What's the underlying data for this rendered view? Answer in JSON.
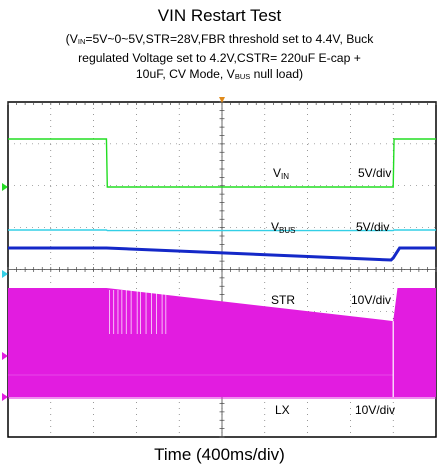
{
  "title": "VIN Restart Test",
  "caption": {
    "line1_pre": "(V",
    "line1_sub1": "IN",
    "line1_post": "=5V~0~5V,STR=28V,FBR threshold set to 4.4V, Buck",
    "line2": "regulated Voltage set to 4.2V,CSTR= 220uF E-cap +",
    "line3_pre": "10uF, CV Mode, V",
    "line3_sub": "BUS",
    "line3_post": " null load)"
  },
  "xlabel": "Time (400ms/div)",
  "colors": {
    "vin": "#22dd22",
    "vbus": "#33cfe6",
    "str": "#1428c8",
    "lx": "#e21ce0",
    "grid": "#555555",
    "frame": "#000000"
  },
  "chart_data": {
    "type": "line",
    "title": "VIN Restart Test",
    "xlabel": "Time (400ms/div)",
    "x_divisions": 10,
    "y_divisions": 8,
    "series": [
      {
        "name": "VIN",
        "sub": "IN",
        "scale": "5V/div",
        "t": [
          0,
          2.3,
          2.32,
          9.0,
          9.02,
          10
        ],
        "v": [
          5,
          5,
          0,
          0,
          5,
          5
        ]
      },
      {
        "name": "VBUS",
        "sub": "BUS",
        "scale": "5V/div",
        "t": [
          0,
          2.3,
          2.32,
          9.0,
          9.02,
          10
        ],
        "v": [
          4.2,
          4.2,
          4.0,
          4.0,
          4.2,
          4.2
        ]
      },
      {
        "name": "STR",
        "scale": "10V/div",
        "t": [
          0,
          2.3,
          8.95,
          9.0,
          9.15,
          10
        ],
        "v": [
          28,
          28,
          19.6,
          21,
          28,
          28
        ]
      },
      {
        "name": "LX",
        "scale": "10V/div",
        "t": [
          0,
          2.3,
          9.0,
          9.1,
          10
        ],
        "v": [
          28,
          28,
          19.5,
          28,
          28
        ],
        "style": "switching-envelope"
      }
    ]
  }
}
